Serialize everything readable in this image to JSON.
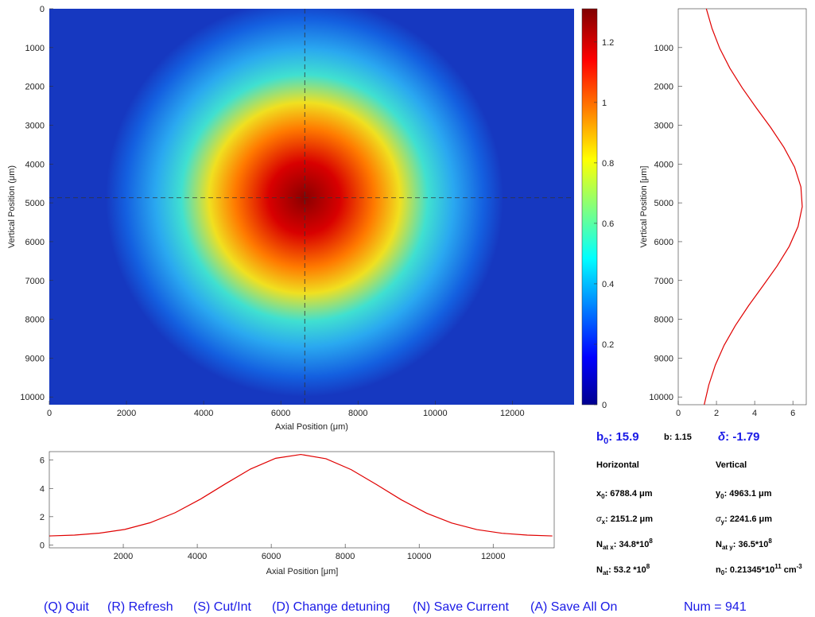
{
  "image_plot": {
    "xlabel": "Axial Position (μm)",
    "ylabel": "Vertical Position (μm)",
    "xlim": [
      0,
      13600
    ],
    "ylim": [
      0,
      10200
    ],
    "xticks": [
      0,
      2000,
      4000,
      6000,
      8000,
      10000,
      12000
    ],
    "yticks": [
      0,
      1000,
      2000,
      3000,
      4000,
      5000,
      6000,
      7000,
      8000,
      9000,
      10000
    ],
    "crosshair": {
      "x": 6620,
      "y": 4870
    }
  },
  "colorbar": {
    "lim": [
      0,
      1.31
    ],
    "ticks": [
      0,
      0.2,
      0.4,
      0.6,
      0.8,
      1,
      1.2
    ]
  },
  "vertical_profile": {
    "ylabel": "Vertical Position [μm]",
    "xlim": [
      0,
      6.7
    ],
    "ylim": [
      0,
      10200
    ],
    "xticks": [
      0,
      2,
      4,
      6
    ],
    "yticks": [
      1000,
      2000,
      3000,
      4000,
      5000,
      6000,
      7000,
      8000,
      9000,
      10000
    ],
    "color": "#e00000",
    "y": [
      0,
      510,
      1020,
      1530,
      2040,
      2550,
      3060,
      3570,
      4080,
      4590,
      5100,
      5610,
      6120,
      6630,
      7140,
      7650,
      8160,
      8670,
      9180,
      9690,
      10200
    ],
    "values": [
      1.47,
      1.77,
      2.17,
      2.7,
      3.35,
      4.08,
      4.84,
      5.53,
      6.09,
      6.42,
      6.49,
      6.27,
      5.81,
      5.17,
      4.43,
      3.68,
      2.99,
      2.4,
      1.94,
      1.6,
      1.36
    ]
  },
  "horizontal_profile": {
    "xlabel": "Axial Position [μm]",
    "xlim": [
      0,
      13650
    ],
    "ylim": [
      -0.2,
      6.6
    ],
    "xticks": [
      2000,
      4000,
      6000,
      8000,
      10000,
      12000
    ],
    "yticks": [
      0,
      2,
      4,
      6
    ],
    "color": "#e00000",
    "x": [
      0,
      680,
      1360,
      2040,
      2720,
      3400,
      4080,
      4760,
      5440,
      6120,
      6800,
      7480,
      8160,
      8840,
      9520,
      10200,
      10880,
      11560,
      12240,
      12920,
      13600
    ],
    "values": [
      0.64,
      0.7,
      0.84,
      1.1,
      1.57,
      2.28,
      3.23,
      4.32,
      5.37,
      6.13,
      6.4,
      6.1,
      5.33,
      4.28,
      3.19,
      2.25,
      1.55,
      1.09,
      0.83,
      0.7,
      0.64
    ]
  },
  "stats": {
    "b0": {
      "symbol": "b",
      "sub": "0",
      "text": ": 15.9"
    },
    "b": "b: 1.15",
    "delta": {
      "symbol": "δ",
      "text": ": -1.79"
    },
    "horizontal_heading": "Horizontal",
    "vertical_heading": "Vertical",
    "x0": {
      "symbol": "x",
      "sub": "0",
      "text": ": 6788.4 μm"
    },
    "y0": {
      "symbol": "y",
      "sub": "0",
      "text": ": 4963.1 μm"
    },
    "sigma_x": {
      "symbol": "σ",
      "sub": "x",
      "text": ": 2151.2 μm"
    },
    "sigma_y": {
      "symbol": "σ",
      "sub": "y",
      "text": ": 2241.6 μm"
    },
    "N_at_x": {
      "symbol": "N",
      "sub": "at x",
      "text": ": 34.8*10",
      "sup": "8"
    },
    "N_at_y": {
      "symbol": "N",
      "sub": "at y",
      "text": ": 36.5*10",
      "sup": "8"
    },
    "N_at": {
      "symbol": "N",
      "sub": "at",
      "text": ": 53.2 *10",
      "sup": "8"
    },
    "n0": {
      "symbol": "n",
      "sub": "0",
      "text": ": 0.21345*10",
      "sup": "11",
      "unit": " cm",
      "unit_sup": "-3"
    }
  },
  "buttons": [
    "(Q) Quit",
    "(R) Refresh",
    "(S) Cut/Int",
    "(D) Change detuning",
    "(N) Save Current",
    "(A) Save All On"
  ],
  "counter": "Num = 941"
}
